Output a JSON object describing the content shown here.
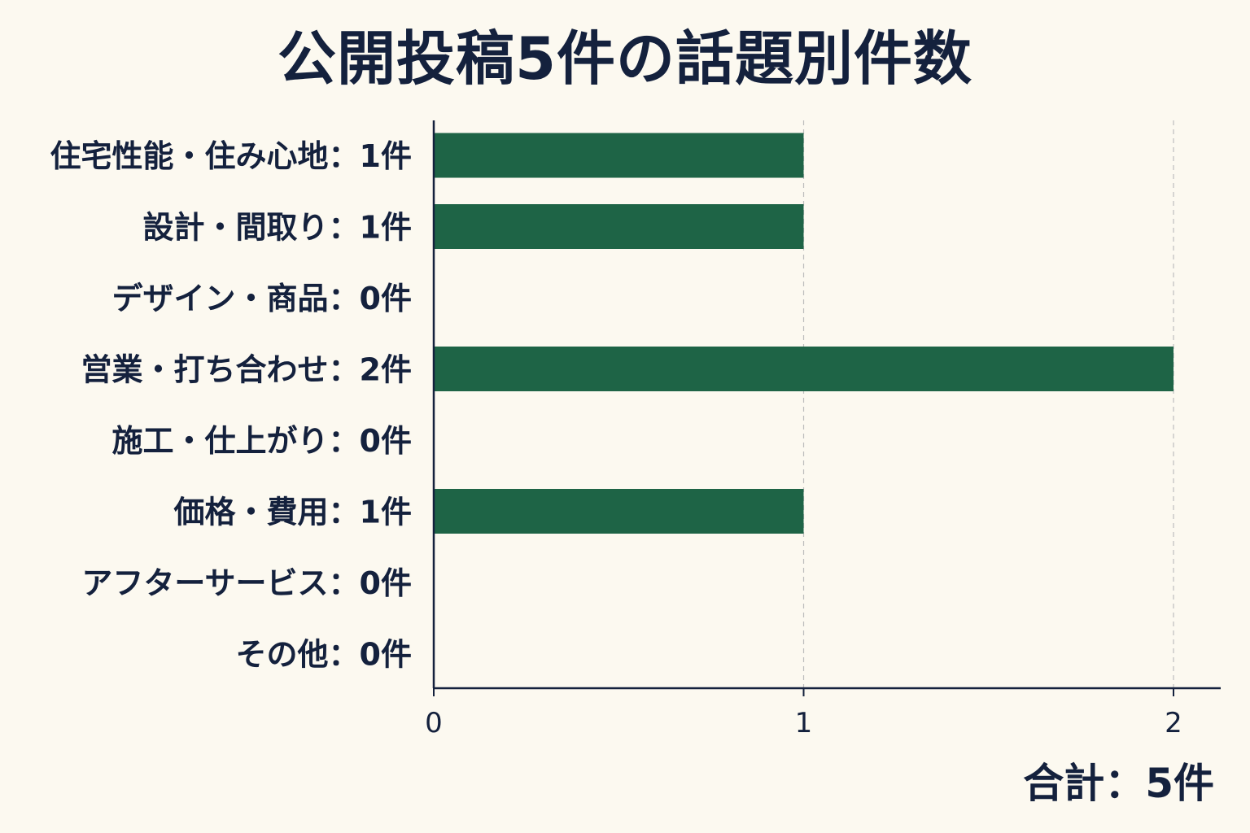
{
  "chart_data": {
    "type": "bar",
    "orientation": "horizontal",
    "title": "公開投稿5件の話題別件数",
    "categories": [
      "住宅性能・住み心地：1件",
      "設計・間取り：1件",
      "デザイン・商品：0件",
      "営業・打ち合わせ：2件",
      "施工・仕上がり：0件",
      "価格・費用：1件",
      "アフターサービス：0件",
      "その他：0件"
    ],
    "values": [
      1,
      1,
      0,
      2,
      0,
      1,
      0,
      0
    ],
    "x_ticks": [
      "0",
      "1",
      "2"
    ],
    "xlim": [
      0,
      2
    ],
    "grid": "vertical dashed",
    "bar_color": "#1e6446",
    "total_label": "合計：5件"
  }
}
